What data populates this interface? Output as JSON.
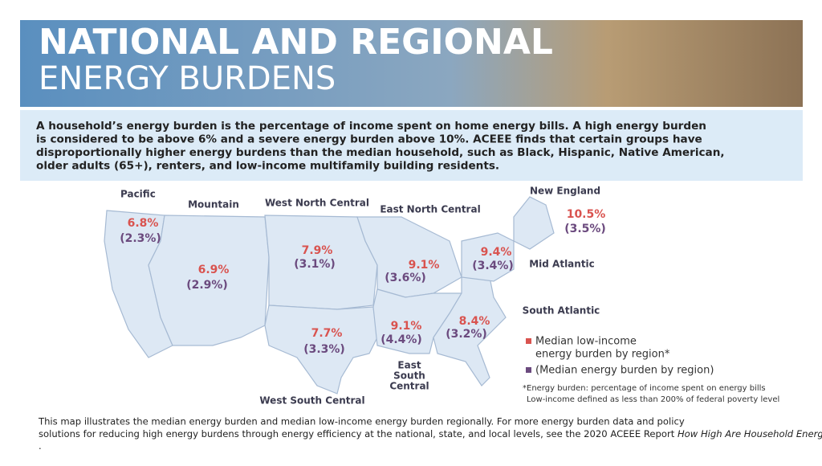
{
  "header": {
    "title_line1": "NATIONAL AND REGIONAL",
    "title_line2": "ENERGY BURDENS"
  },
  "intro": [
    "A household’s energy burden is the percentage of income spent on home energy bills. A high energy burden",
    "is considered to be above 6% and a severe energy burden above 10%. ACEEE finds that certain groups have",
    "disproportionally higher energy burdens than the median household, such as Black, Hispanic, Native American,",
    "older adults (65+), renters, and low-income multifamily building residents."
  ],
  "regions": [
    {
      "name": "Pacific",
      "low_income": "6.8%",
      "median": "(2.3%)"
    },
    {
      "name": "Mountain",
      "low_income": "6.9%",
      "median": "(2.9%)"
    },
    {
      "name": "West North Central",
      "low_income": "7.9%",
      "median": "(3.1%)"
    },
    {
      "name": "East North Central",
      "low_income": "9.1%",
      "median": "(3.6%)"
    },
    {
      "name": "New England",
      "low_income": "10.5%",
      "median": "(3.5%)"
    },
    {
      "name": "Mid Atlantic",
      "low_income": "9.4%",
      "median": "(3.4%)"
    },
    {
      "name": "South Atlantic",
      "low_income": "8.4%",
      "median": "(3.2%)"
    },
    {
      "name": [
        "East",
        "South",
        "Central"
      ],
      "low_income": "9.1%",
      "median": "(4.4%)"
    },
    {
      "name": "West South Central",
      "low_income": "7.7%",
      "median": "(3.3%)"
    }
  ],
  "legend": {
    "low_income": [
      "Median low-income",
      "energy burden by region*"
    ],
    "median": "(Median energy burden by region)"
  },
  "footnote": [
    "*Energy burden: percentage of income spent on energy bills",
    "Low-income defined as less than 200% of federal poverty level"
  ],
  "bottom": {
    "text": [
      "This map illustrates the median energy burden and median low-income energy burden regionally. For more energy burden data and policy",
      "solutions for reducing high energy burdens through energy efficiency at the national, state, and local levels, see the 2020 ACEEE Report "
    ],
    "report": "How High Are Household Energy Burdens",
    "end": "."
  }
}
